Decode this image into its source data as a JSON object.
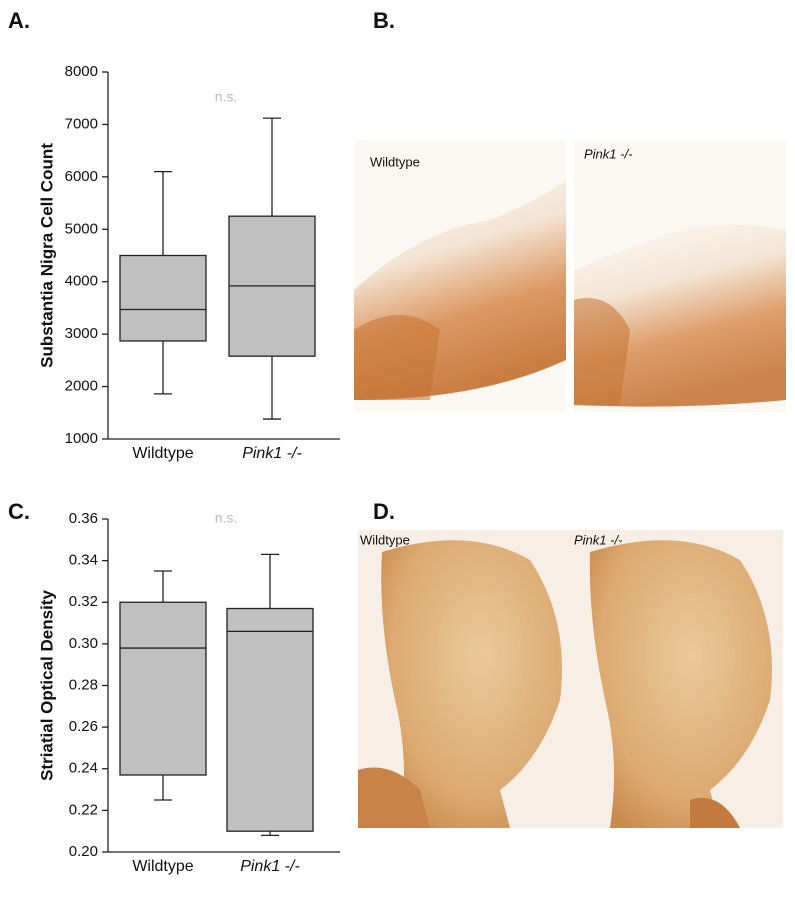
{
  "chart_data": [
    {
      "type": "box",
      "panel_label": "A.",
      "ylabel": "Substantia Nigra Cell Count",
      "annotation": "n.s.",
      "categories": [
        "Wildtype",
        "Pink1 -/-"
      ],
      "boxes": [
        {
          "min": 1860,
          "q1": 2870,
          "median": 3470,
          "q3": 4500,
          "max": 6100
        },
        {
          "min": 1380,
          "q1": 2580,
          "median": 3920,
          "q3": 5250,
          "max": 7120
        }
      ],
      "color": "#c0c0c0",
      "ylim": [
        1000,
        8000
      ],
      "yticks": [
        1000,
        2000,
        3000,
        4000,
        5000,
        6000,
        7000,
        8000
      ]
    },
    {
      "type": "box",
      "panel_label": "C.",
      "ylabel": "Striatial Optical Density",
      "annotation": "n.s.",
      "categories": [
        "Wildtype",
        "Pink1 -/-"
      ],
      "boxes": [
        {
          "min": 0.225,
          "q1": 0.237,
          "median": 0.298,
          "q3": 0.32,
          "max": 0.335
        },
        {
          "min": 0.208,
          "q1": 0.21,
          "median": 0.306,
          "q3": 0.317,
          "max": 0.343
        }
      ],
      "color": "#c0c0c0",
      "ylim": [
        0.2,
        0.36
      ],
      "yticks": [
        {
          "value": 0.2,
          "label": "0.20"
        },
        0.22,
        0.24,
        0.26,
        0.28,
        {
          "value": 0.3,
          "label": "0.30"
        },
        0.32,
        0.34,
        0.36
      ]
    }
  ],
  "images": [
    {
      "panel_label": "B.",
      "labels": [
        "Wildtype",
        "Pink1 -/-"
      ]
    },
    {
      "panel_label": "D.",
      "labels": [
        "Wildtype",
        "Pink1 -/-"
      ]
    }
  ]
}
